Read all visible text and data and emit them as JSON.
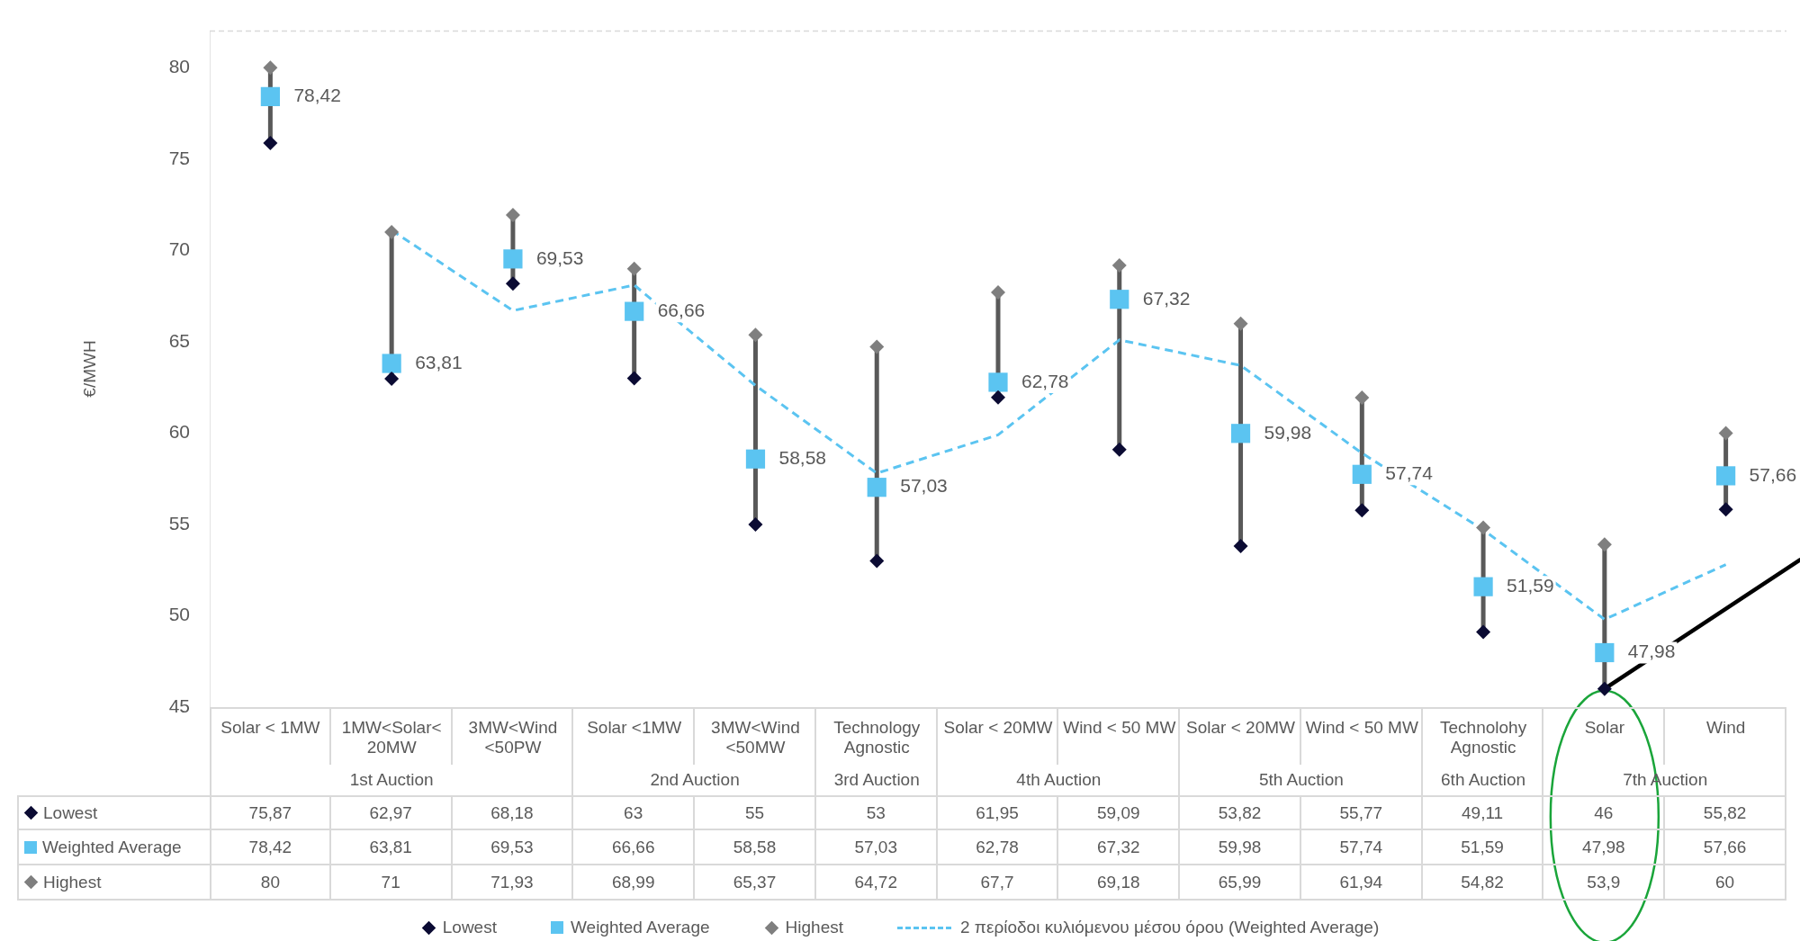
{
  "chart_data": {
    "type": "scatter",
    "ylabel": "€/MWH",
    "categories": [
      "Solar < 1MW",
      "1MW<Solar< 20MW",
      "3MW<Wind <50PW",
      "Solar <1MW",
      "3MW<Wind <50MW",
      "Technology Agnostic",
      "Solar < 20MW",
      "Wind < 50 MW",
      "Solar < 20MW",
      "Wind < 50 MW",
      "Technolohy Agnostic",
      "Solar",
      "Wind"
    ],
    "annotations": [
      "1st Auction",
      "2nd Auction",
      "3rd Auction",
      "4th Auction",
      "5th Auction",
      "6th Auction",
      "7th Auction"
    ],
    "series": [
      {
        "name": "Lowest",
        "color": "#0b0b33",
        "marker": "diamond",
        "values": [
          75.87,
          62.97,
          68.18,
          63,
          55,
          53,
          61.95,
          59.09,
          53.82,
          55.77,
          49.11,
          46,
          55.82
        ],
        "value_labels": [
          "75,87",
          "62,97",
          "68,18",
          "63",
          "55",
          "53",
          "61,95",
          "59,09",
          "53,82",
          "55,77",
          "49,11",
          "46",
          "55,82"
        ]
      },
      {
        "name": "Weighted Average",
        "color": "#5bc4f1",
        "marker": "square",
        "values": [
          78.42,
          63.81,
          69.53,
          66.66,
          58.58,
          57.03,
          62.78,
          67.32,
          59.98,
          57.74,
          51.59,
          47.98,
          57.66
        ],
        "value_labels": [
          "78,42",
          "63,81",
          "69,53",
          "66,66",
          "58,58",
          "57,03",
          "62,78",
          "67,32",
          "59,98",
          "57,74",
          "51,59",
          "47,98",
          "57,66"
        ]
      },
      {
        "name": "Highest",
        "color": "#7f7f7f",
        "marker": "diamond",
        "values": [
          80,
          71,
          71.93,
          68.99,
          65.37,
          64.72,
          67.7,
          69.18,
          65.99,
          61.94,
          54.82,
          53.9,
          60
        ],
        "value_labels": [
          "80",
          "71",
          "71,93",
          "68,99",
          "65,37",
          "64,72",
          "67,7",
          "69,18",
          "65,99",
          "61,94",
          "54,82",
          "53,9",
          "60"
        ]
      },
      {
        "name": "2 περίοδοι κυλιόμενου μέσου όρου (Weighted Average)",
        "type": "line",
        "color": "#5bc4f1",
        "line_style": "dashed",
        "marker": "none",
        "values": [
          null,
          71.1,
          66.7,
          68.1,
          62.6,
          57.8,
          59.9,
          65.1,
          63.7,
          58.9,
          54.7,
          49.8,
          52.8
        ]
      }
    ],
    "ylim": [
      45,
      82
    ],
    "yticks": [
      45,
      50,
      55,
      60,
      65,
      70,
      75,
      80
    ],
    "grid": false,
    "legend": "bottom"
  }
}
